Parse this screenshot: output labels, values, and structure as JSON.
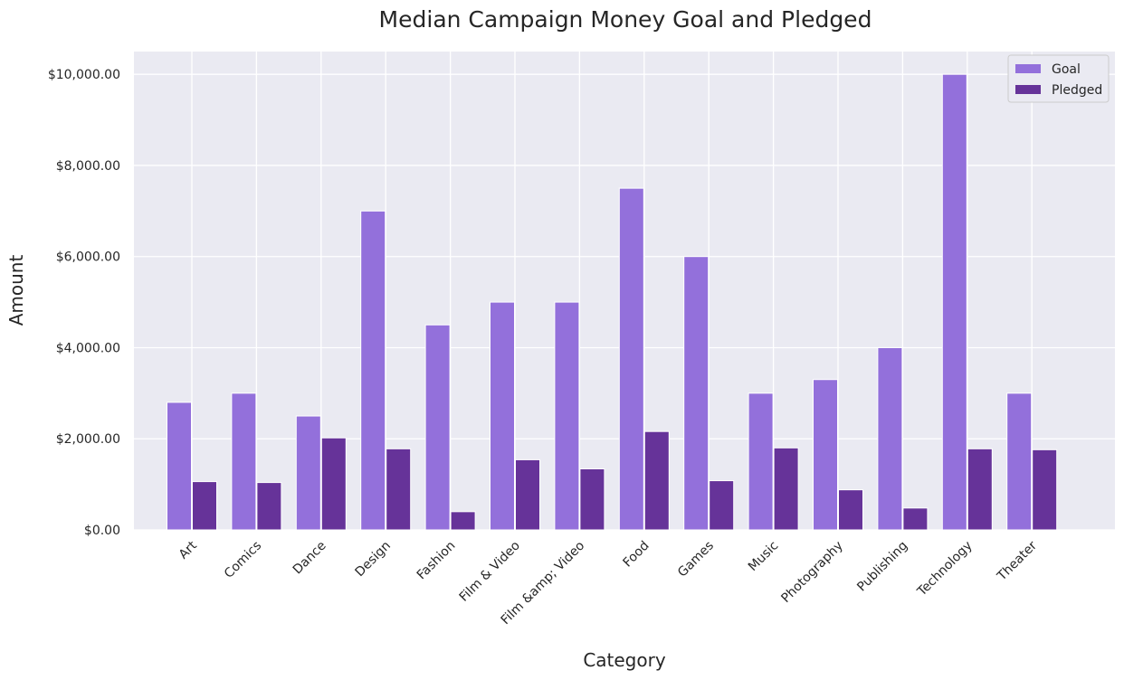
{
  "chart_data": {
    "type": "bar",
    "title": "Median Campaign Money Goal and Pledged",
    "xlabel": "Category",
    "ylabel": "Amount",
    "categories": [
      "Art",
      "Comics",
      "Dance",
      "Design",
      "Fashion",
      "Film & Video",
      "Film &amp; Video",
      "Food",
      "Games",
      "Music",
      "Photography",
      "Publishing",
      "Technology",
      "Theater"
    ],
    "series": [
      {
        "name": "Goal",
        "color": "#9370db",
        "values": [
          2800,
          3000,
          2500,
          7000,
          4500,
          5000,
          5000,
          7500,
          6000,
          3000,
          3300,
          4000,
          10000,
          3000
        ]
      },
      {
        "name": "Pledged",
        "color": "#663399",
        "values": [
          1060,
          1040,
          2020,
          1780,
          400,
          1540,
          1340,
          2160,
          1080,
          1800,
          880,
          480,
          1780,
          1760
        ]
      }
    ],
    "ylim": [
      0,
      10500
    ],
    "yticks": [
      0,
      2000,
      4000,
      6000,
      8000,
      10000
    ],
    "ytick_labels": [
      "$0.00",
      "$2,000.00",
      "$4,000.00",
      "$6,000.00",
      "$8,000.00",
      "$10,000.00"
    ],
    "grid": true,
    "legend_position": "top-right",
    "background_color": "#eaeaf2"
  }
}
